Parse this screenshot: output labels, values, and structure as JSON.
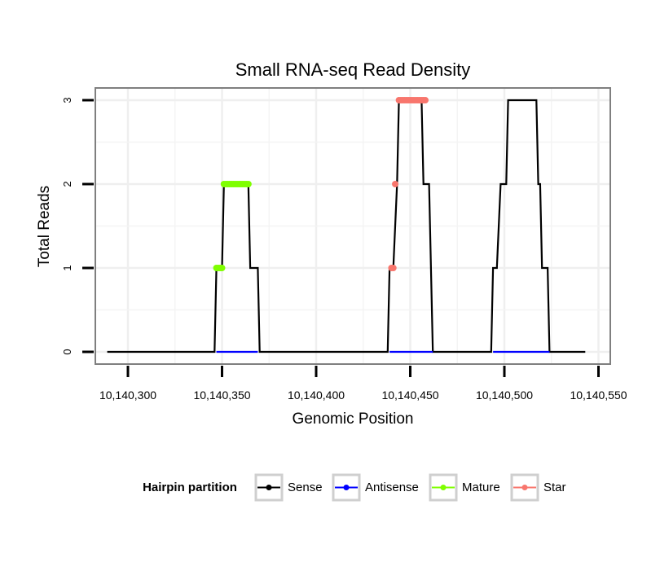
{
  "chart_data": {
    "type": "line",
    "title": "Small RNA-seq Read Density",
    "xlabel": "Genomic Position",
    "ylabel": "Total Reads",
    "xlim": [
      10140294,
      10140550
    ],
    "ylim": [
      0,
      3
    ],
    "x_ticks": [
      10140300,
      10140350,
      10140400,
      10140450,
      10140500,
      10140550
    ],
    "x_tick_labels": [
      "10,140,300",
      "10,140,350",
      "10,140,400",
      "10,140,450",
      "10,140,500",
      "10,140,550"
    ],
    "y_ticks": [
      0,
      1,
      2,
      3
    ],
    "y_tick_labels": [
      "0",
      "1",
      "2",
      "3"
    ],
    "grid": true,
    "legend": {
      "title": "Hairpin partition",
      "position": "bottom",
      "entries": [
        "Sense",
        "Antisense",
        "Mature",
        "Star"
      ]
    },
    "series": [
      {
        "name": "Sense",
        "color": "#000000",
        "style": "line",
        "points": [
          [
            10140289,
            0
          ],
          [
            10140346,
            0
          ],
          [
            10140347,
            1
          ],
          [
            10140350,
            1
          ],
          [
            10140351,
            2
          ],
          [
            10140364,
            2
          ],
          [
            10140365,
            1
          ],
          [
            10140369,
            1
          ],
          [
            10140370,
            0
          ],
          [
            10140438,
            0
          ],
          [
            10140439,
            1
          ],
          [
            10140441,
            1
          ],
          [
            10140443,
            2
          ],
          [
            10140444,
            3
          ],
          [
            10140456,
            3
          ],
          [
            10140457,
            2
          ],
          [
            10140460,
            2
          ],
          [
            10140462,
            0
          ],
          [
            10140493,
            0
          ],
          [
            10140494,
            1
          ],
          [
            10140496,
            1
          ],
          [
            10140498,
            2
          ],
          [
            10140501,
            2
          ],
          [
            10140502,
            3
          ],
          [
            10140517,
            3
          ],
          [
            10140518,
            2
          ],
          [
            10140519,
            2
          ],
          [
            10140520,
            1
          ],
          [
            10140523,
            1
          ],
          [
            10140524,
            0
          ],
          [
            10140543,
            0
          ]
        ]
      },
      {
        "name": "Antisense",
        "color": "#0000ff",
        "style": "line",
        "segments": [
          [
            [
              10140347,
              0
            ],
            [
              10140369,
              0
            ]
          ],
          [
            [
              10140439,
              0
            ],
            [
              10140462,
              0
            ]
          ],
          [
            [
              10140494,
              0
            ],
            [
              10140524,
              0
            ]
          ]
        ]
      },
      {
        "name": "Mature",
        "color": "#7fff00",
        "style": "points",
        "points": [
          [
            10140347,
            1
          ],
          [
            10140348,
            1
          ],
          [
            10140349,
            1
          ],
          [
            10140350,
            1
          ],
          [
            10140351,
            2
          ],
          [
            10140352,
            2
          ],
          [
            10140353,
            2
          ],
          [
            10140354,
            2
          ],
          [
            10140355,
            2
          ],
          [
            10140356,
            2
          ],
          [
            10140357,
            2
          ],
          [
            10140358,
            2
          ],
          [
            10140359,
            2
          ],
          [
            10140360,
            2
          ],
          [
            10140361,
            2
          ],
          [
            10140362,
            2
          ],
          [
            10140363,
            2
          ],
          [
            10140364,
            2
          ]
        ]
      },
      {
        "name": "Star",
        "color": "#f8766d",
        "style": "points",
        "points": [
          [
            10140440,
            1
          ],
          [
            10140441,
            1
          ],
          [
            10140442,
            2
          ],
          [
            10140444,
            3
          ],
          [
            10140445,
            3
          ],
          [
            10140446,
            3
          ],
          [
            10140447,
            3
          ],
          [
            10140448,
            3
          ],
          [
            10140449,
            3
          ],
          [
            10140450,
            3
          ],
          [
            10140451,
            3
          ],
          [
            10140452,
            3
          ],
          [
            10140453,
            3
          ],
          [
            10140454,
            3
          ],
          [
            10140455,
            3
          ],
          [
            10140456,
            3
          ],
          [
            10140457,
            3
          ],
          [
            10140458,
            3
          ]
        ]
      }
    ]
  }
}
